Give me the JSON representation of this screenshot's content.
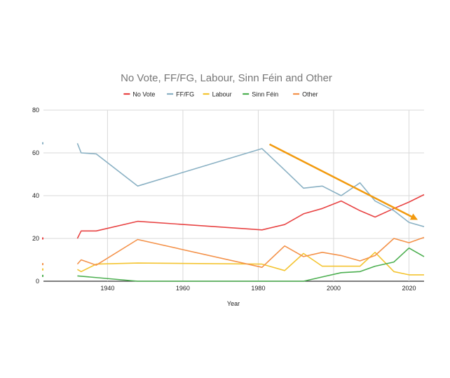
{
  "chart_data": {
    "type": "line",
    "title": "No Vote, FF/FG, Labour, Sinn Féin and Other",
    "xlabel": "Year",
    "ylabel": "",
    "xlim": [
      1923,
      2024
    ],
    "ylim": [
      0,
      80
    ],
    "x_ticks": [
      1940,
      1960,
      1980,
      2000,
      2020
    ],
    "y_ticks": [
      0,
      20,
      40,
      60,
      80
    ],
    "grid": true,
    "legend_position": "top",
    "series": [
      {
        "name": "No Vote",
        "color": "#e84343",
        "x": [
          1932,
          1933,
          1937,
          1948,
          1981,
          1987,
          1992,
          1997,
          2002,
          2007,
          2011,
          2016,
          2020,
          2024
        ],
        "values": [
          20,
          23.5,
          23.5,
          28,
          24,
          26.5,
          31.5,
          34,
          37.5,
          33,
          30,
          34,
          37,
          40.5
        ]
      },
      {
        "name": "FF/FG",
        "color": "#8ab1c4",
        "x": [
          1932,
          1933,
          1937,
          1948,
          1981,
          1987,
          1992,
          1997,
          2002,
          2007,
          2011,
          2016,
          2020,
          2024
        ],
        "values": [
          64.5,
          60,
          59.5,
          44.5,
          62,
          52,
          43.5,
          44.5,
          40,
          46,
          37.5,
          33,
          27.5,
          25.5
        ]
      },
      {
        "name": "Labour",
        "color": "#f4c430",
        "x": [
          1932,
          1933,
          1937,
          1948,
          1981,
          1987,
          1992,
          1997,
          2002,
          2007,
          2011,
          2016,
          2020,
          2024
        ],
        "values": [
          5.5,
          4.5,
          8,
          8.5,
          8,
          5,
          13,
          7,
          7,
          7,
          13.5,
          4.5,
          3,
          3
        ]
      },
      {
        "name": "Sinn Féin",
        "color": "#4caf50",
        "x": [
          1932,
          1948,
          1981,
          1987,
          1992,
          1997,
          2002,
          2007,
          2011,
          2016,
          2020,
          2024
        ],
        "values": [
          2.5,
          0,
          0,
          0,
          0,
          2,
          4,
          4.5,
          7,
          9,
          15.5,
          11.5
        ]
      },
      {
        "name": "Other",
        "color": "#f4924a",
        "x": [
          1932,
          1933,
          1937,
          1948,
          1981,
          1987,
          1992,
          1997,
          2002,
          2007,
          2011,
          2016,
          2020,
          2024
        ],
        "values": [
          8,
          10,
          7.5,
          19.5,
          6.5,
          16.5,
          11.5,
          13.5,
          12,
          9.5,
          12,
          20,
          18,
          20.5
        ]
      }
    ],
    "annotation": {
      "type": "arrow",
      "color": "#f29a0e",
      "from": [
        1983,
        64
      ],
      "to": [
        2022,
        29
      ]
    }
  }
}
